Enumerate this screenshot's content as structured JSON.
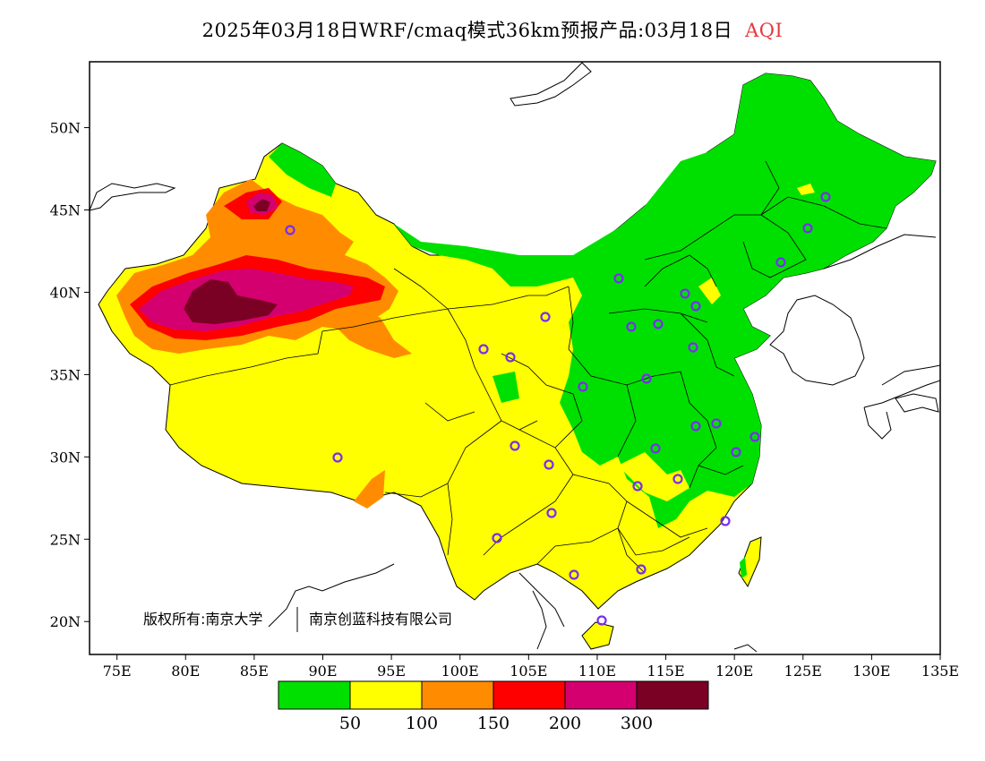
{
  "title": {
    "main": "2025年03月18日WRF/cmaq模式36km预报产品:03月18日",
    "variable": "AQI",
    "variable_color": "#e8383d"
  },
  "axes": {
    "lat_labels": [
      "50N",
      "45N",
      "40N",
      "35N",
      "30N",
      "25N",
      "20N"
    ],
    "lon_labels": [
      "75E",
      "80E",
      "85E",
      "90E",
      "95E",
      "100E",
      "105E",
      "110E",
      "115E",
      "120E",
      "125E",
      "130E",
      "135E"
    ],
    "lon_range": [
      73,
      135
    ],
    "lat_range": [
      18,
      54
    ]
  },
  "copyright": {
    "owner1": "版权所有:南京大学",
    "owner2": "南京创蓝科技有限公司"
  },
  "legend": {
    "colors": [
      "#00e000",
      "#ffff00",
      "#ff8c00",
      "#ff0000",
      "#d4006f",
      "#7a0024"
    ],
    "labels": [
      "50",
      "100",
      "150",
      "200",
      "300"
    ]
  }
}
